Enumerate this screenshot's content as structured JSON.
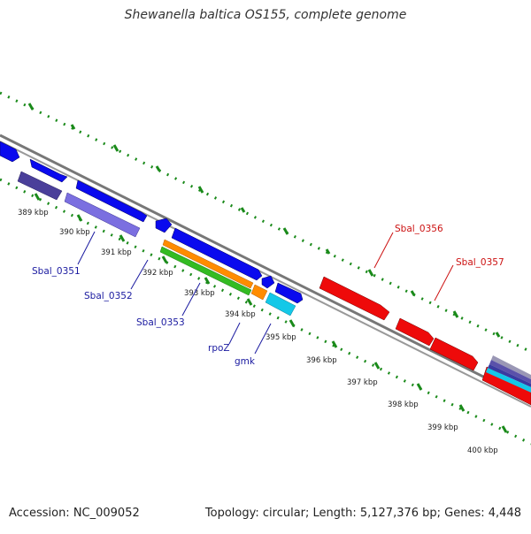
{
  "title": "Shewanella baltica OS155, complete genome",
  "footer": {
    "accession": "Accession: NC_009052",
    "topology": "Topology: circular; Length: 5,127,376 bp; Genes: 4,448"
  },
  "ticks": [
    "389 kbp",
    "390 kbp",
    "391 kbp",
    "392 kbp",
    "393 kbp",
    "394 kbp",
    "395 kbp",
    "396 kbp",
    "397 kbp",
    "398 kbp",
    "399 kbp",
    "400 kbp"
  ],
  "gene_labels": [
    {
      "id": "sbal0351",
      "text": "Sbal_0351",
      "color": "#1a1aa0"
    },
    {
      "id": "sbal0352",
      "text": "Sbal_0352",
      "color": "#1a1aa0"
    },
    {
      "id": "sbal0353",
      "text": "Sbal_0353",
      "color": "#1a1aa0"
    },
    {
      "id": "rpoz",
      "text": "rpoZ",
      "color": "#1a1aa0"
    },
    {
      "id": "gmk",
      "text": "gmk",
      "color": "#1a1aa0"
    },
    {
      "id": "sbal0356",
      "text": "Sbal_0356",
      "color": "#cc1111"
    },
    {
      "id": "sbal0357",
      "text": "Sbal_0357",
      "color": "#cc1111"
    }
  ],
  "colors": {
    "cds_forward": "#0a0aee",
    "cds_shade": "#4a3f9a",
    "cds_light": "#7b6fe0",
    "red_genes": "#ee0a0a",
    "orange_track": "#ff8c00",
    "green_track": "#33bb22",
    "cyan_track": "#14c8e8",
    "scale_ticks": "#1a8a1a",
    "backbone": "#888888"
  }
}
